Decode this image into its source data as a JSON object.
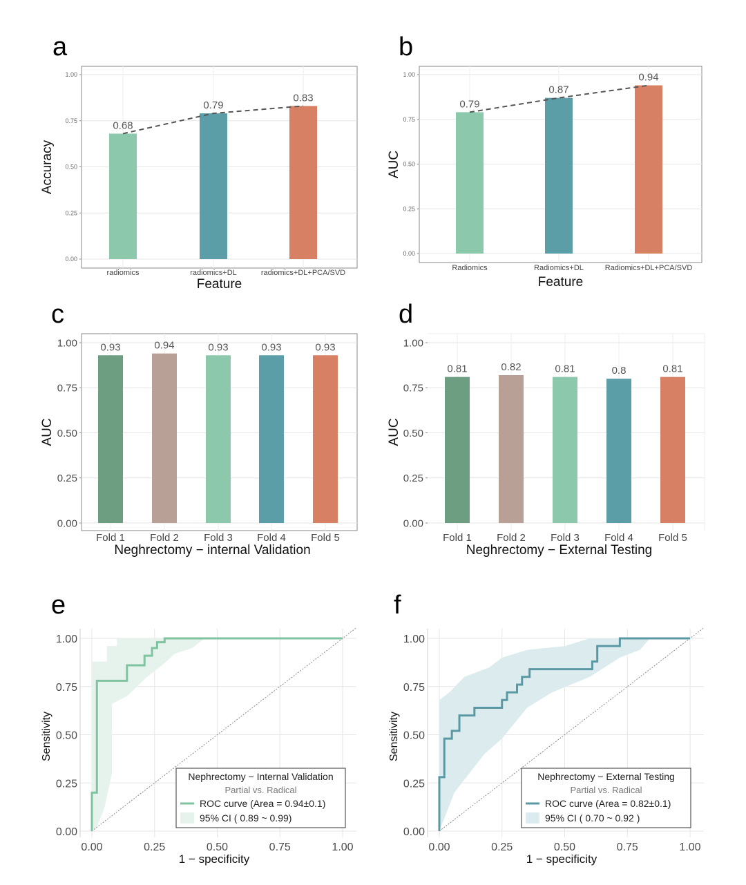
{
  "colors": {
    "green_light": "#8cc8ac",
    "teal": "#5b9ea8",
    "orange": "#d88063",
    "green_dark": "#6e9e82",
    "mauve": "#b9a096",
    "roc_green": "#7fc3a1",
    "ci_green": "#e6f3ec",
    "roc_teal": "#5a99a3",
    "ci_teal": "#dcecee",
    "dashed": "#555555",
    "grid": "#e6e6e6",
    "frame": "#888888"
  },
  "chart_data": [
    {
      "panel": "a",
      "type": "bar",
      "categories": [
        "radiomics",
        "radiomics+DL",
        "radiomics+DL+PCA/SVD"
      ],
      "values": [
        0.68,
        0.79,
        0.83
      ],
      "data_labels": [
        "0.68",
        "0.79",
        "0.83"
      ],
      "ylim": [
        0,
        1
      ],
      "yticks": [
        "0.00",
        "0.25",
        "0.50",
        "0.75",
        "1.00"
      ],
      "xlabel": "Feature",
      "ylabel": "Accuracy",
      "trend_line": "dashed",
      "grid": true
    },
    {
      "panel": "b",
      "type": "bar",
      "categories": [
        "Radiomics",
        "Radiomics+DL",
        "Radiomics+DL+PCA/SVD"
      ],
      "values": [
        0.79,
        0.87,
        0.94
      ],
      "data_labels": [
        "0.79",
        "0.87",
        "0.94"
      ],
      "ylim": [
        0,
        1
      ],
      "yticks": [
        "0.00",
        "0.25",
        "0.50",
        "0.75",
        "1.00"
      ],
      "xlabel": "Feature",
      "ylabel": "AUC",
      "trend_line": "dashed",
      "grid": true
    },
    {
      "panel": "c",
      "type": "bar",
      "categories": [
        "Fold 1",
        "Fold 2",
        "Fold 3",
        "Fold 4",
        "Fold 5"
      ],
      "values": [
        0.93,
        0.94,
        0.93,
        0.93,
        0.93
      ],
      "data_labels": [
        "0.93",
        "0.94",
        "0.93",
        "0.93",
        "0.93"
      ],
      "ylim": [
        0,
        1
      ],
      "yticks": [
        "0.00",
        "0.25",
        "0.50",
        "0.75",
        "1.00"
      ],
      "xlabel": "Neghrectomy − internal Validation",
      "ylabel": "AUC",
      "grid": true
    },
    {
      "panel": "d",
      "type": "bar",
      "categories": [
        "Fold 1",
        "Fold 2",
        "Fold 3",
        "Fold 4",
        "Fold 5"
      ],
      "values": [
        0.81,
        0.82,
        0.81,
        0.8,
        0.81
      ],
      "data_labels": [
        "0.81",
        "0.82",
        "0.81",
        "0.8",
        "0.81"
      ],
      "ylim": [
        0,
        1
      ],
      "yticks": [
        "0.00",
        "0.25",
        "0.50",
        "0.75",
        "1.00"
      ],
      "xlabel": "Neghrectomy − External Testing",
      "ylabel": "AUC",
      "grid": true
    },
    {
      "panel": "e",
      "type": "line",
      "xlim": [
        0,
        1
      ],
      "ylim": [
        0,
        1
      ],
      "xticks": [
        "0.00",
        "0.25",
        "0.50",
        "0.75",
        "1.00"
      ],
      "yticks": [
        "0.00",
        "0.25",
        "0.50",
        "0.75",
        "1.00"
      ],
      "xlabel": "1 − specificity",
      "ylabel": "Sensitivity",
      "roc": [
        [
          0,
          0
        ],
        [
          0,
          0.2
        ],
        [
          0.02,
          0.2
        ],
        [
          0.02,
          0.78
        ],
        [
          0.14,
          0.78
        ],
        [
          0.14,
          0.86
        ],
        [
          0.21,
          0.86
        ],
        [
          0.21,
          0.91
        ],
        [
          0.24,
          0.91
        ],
        [
          0.24,
          0.95
        ],
        [
          0.26,
          0.95
        ],
        [
          0.26,
          0.98
        ],
        [
          0.29,
          0.98
        ],
        [
          0.29,
          1.0
        ],
        [
          1.0,
          1.0
        ]
      ],
      "ci_upper": [
        [
          0,
          0.1
        ],
        [
          0.0,
          0.88
        ],
        [
          0.06,
          0.88
        ],
        [
          0.06,
          0.96
        ],
        [
          0.1,
          0.96
        ],
        [
          0.1,
          1.0
        ],
        [
          1.0,
          1.0
        ]
      ],
      "ci_lower": [
        [
          1.0,
          1.0
        ],
        [
          0.45,
          1.0
        ],
        [
          0.4,
          0.95
        ],
        [
          0.33,
          0.92
        ],
        [
          0.28,
          0.86
        ],
        [
          0.22,
          0.8
        ],
        [
          0.14,
          0.7
        ],
        [
          0.08,
          0.66
        ],
        [
          0.08,
          0.3
        ],
        [
          0.05,
          0.12
        ],
        [
          0.02,
          0.02
        ],
        [
          0.0,
          0.0
        ]
      ],
      "legend": {
        "title": "Nephrectomy − Internal Validation",
        "subtitle": "Partial vs. Radical",
        "line_label": "ROC curve (Area =  0.94±0.1)",
        "ci_label": "95% CI ( 0.89 ~ 0.99)",
        "position": "bottom-right"
      },
      "grid": true
    },
    {
      "panel": "f",
      "type": "line",
      "xlim": [
        0,
        1
      ],
      "ylim": [
        0,
        1
      ],
      "xticks": [
        "0.00",
        "0.25",
        "0.50",
        "0.75",
        "1.00"
      ],
      "yticks": [
        "0.00",
        "0.25",
        "0.50",
        "0.75",
        "1.00"
      ],
      "xlabel": "1 − specificity",
      "ylabel": "Sensitivity",
      "roc": [
        [
          0,
          0
        ],
        [
          0,
          0.28
        ],
        [
          0.02,
          0.28
        ],
        [
          0.02,
          0.48
        ],
        [
          0.05,
          0.48
        ],
        [
          0.05,
          0.52
        ],
        [
          0.08,
          0.52
        ],
        [
          0.08,
          0.6
        ],
        [
          0.14,
          0.6
        ],
        [
          0.14,
          0.64
        ],
        [
          0.25,
          0.64
        ],
        [
          0.25,
          0.68
        ],
        [
          0.27,
          0.68
        ],
        [
          0.27,
          0.72
        ],
        [
          0.31,
          0.72
        ],
        [
          0.31,
          0.76
        ],
        [
          0.33,
          0.76
        ],
        [
          0.33,
          0.8
        ],
        [
          0.36,
          0.8
        ],
        [
          0.36,
          0.84
        ],
        [
          0.61,
          0.84
        ],
        [
          0.61,
          0.88
        ],
        [
          0.63,
          0.88
        ],
        [
          0.63,
          0.96
        ],
        [
          0.72,
          0.96
        ],
        [
          0.72,
          1.0
        ],
        [
          1.0,
          1.0
        ]
      ],
      "ci_upper": [
        [
          0,
          0.12
        ],
        [
          0,
          0.68
        ],
        [
          0.04,
          0.72
        ],
        [
          0.1,
          0.8
        ],
        [
          0.2,
          0.85
        ],
        [
          0.25,
          0.9
        ],
        [
          0.35,
          0.94
        ],
        [
          0.5,
          0.96
        ],
        [
          0.6,
          1.0
        ],
        [
          1.0,
          1.0
        ]
      ],
      "ci_lower": [
        [
          1.0,
          1.0
        ],
        [
          0.84,
          1.0
        ],
        [
          0.8,
          0.94
        ],
        [
          0.72,
          0.9
        ],
        [
          0.6,
          0.8
        ],
        [
          0.45,
          0.72
        ],
        [
          0.35,
          0.64
        ],
        [
          0.25,
          0.48
        ],
        [
          0.18,
          0.4
        ],
        [
          0.12,
          0.3
        ],
        [
          0.06,
          0.2
        ],
        [
          0.0,
          0.0
        ]
      ],
      "legend": {
        "title": "Nephrectomy − External Testing",
        "subtitle": "Partial vs. Radical",
        "line_label": "ROC curve (Area =  0.82±0.1)",
        "ci_label": "95% CI ( 0.70 ~ 0.92 )",
        "position": "bottom-right"
      },
      "grid": true
    }
  ]
}
